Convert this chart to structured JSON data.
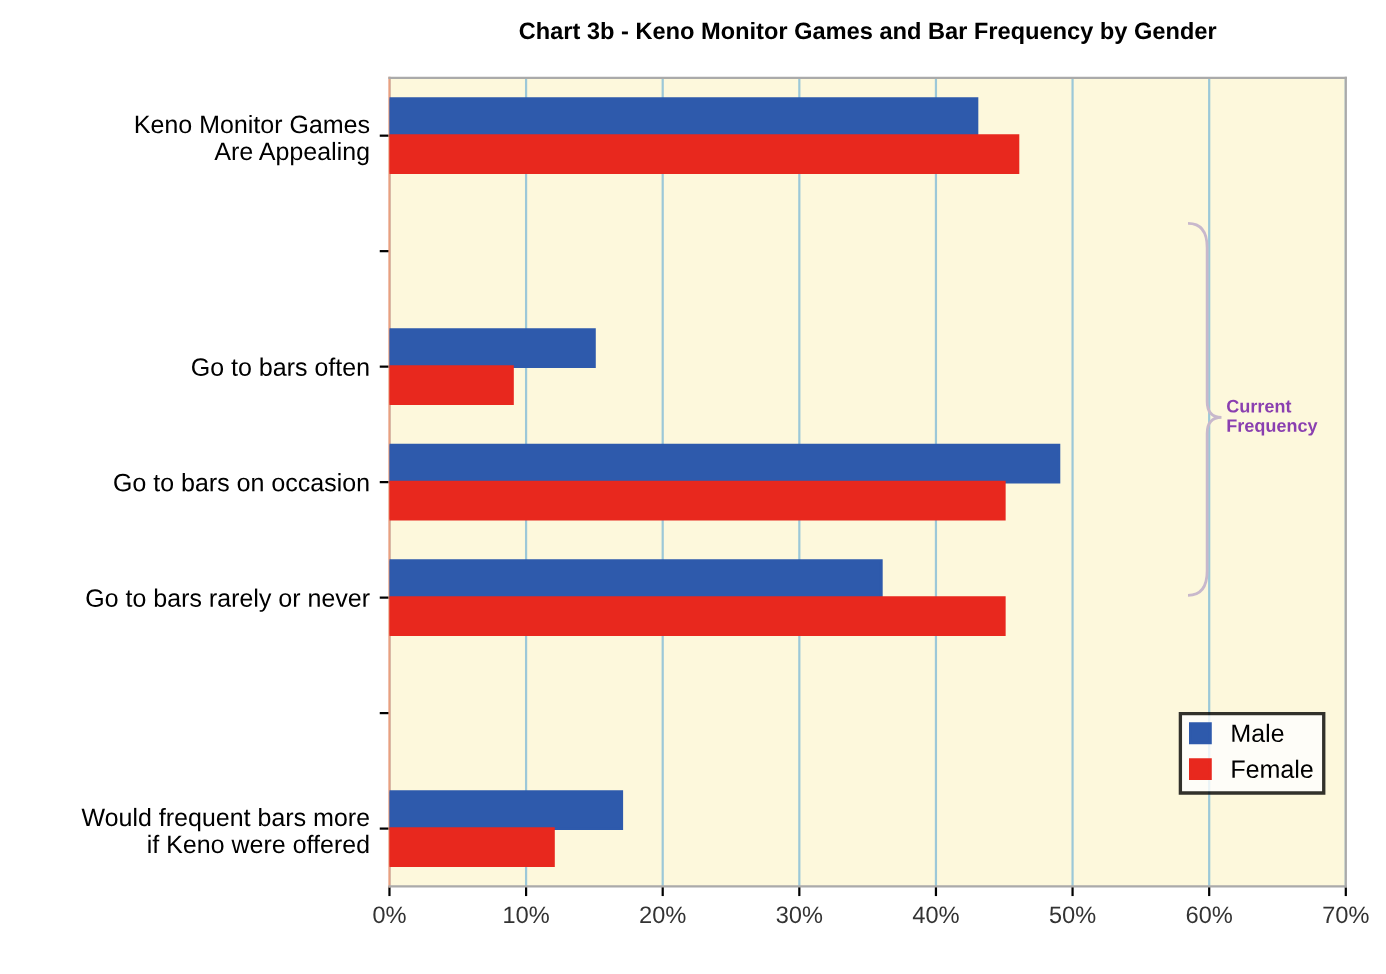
{
  "chart_data": {
    "type": "bar",
    "orientation": "horizontal",
    "title": "Chart 3b - Keno Monitor Games and Bar Frequency by Gender",
    "categories": [
      "Keno Monitor Games\nAre Appealing",
      null,
      "Go to bars often",
      "Go to bars on occasion",
      "Go to bars rarely or never",
      null,
      "Would frequent bars more\nif Keno were offered"
    ],
    "series": [
      {
        "name": "Male",
        "color": "#2e5aac",
        "values": [
          43,
          null,
          15,
          49,
          36,
          null,
          17
        ]
      },
      {
        "name": "Female",
        "color": "#e8281e",
        "values": [
          46,
          null,
          9,
          45,
          45,
          null,
          12
        ]
      }
    ],
    "xlim": [
      0,
      70
    ],
    "xticks": [
      {
        "value": 0,
        "label": "0%"
      },
      {
        "value": 10,
        "label": "10%"
      },
      {
        "value": 20,
        "label": "20%"
      },
      {
        "value": 30,
        "label": "30%"
      },
      {
        "value": 40,
        "label": "40%"
      },
      {
        "value": 50,
        "label": "50%"
      },
      {
        "value": 60,
        "label": "60%"
      },
      {
        "value": 70,
        "label": "70%"
      }
    ],
    "grid": "x",
    "legend": "bottom right",
    "annotations": [
      "Current\nFrequency"
    ]
  }
}
